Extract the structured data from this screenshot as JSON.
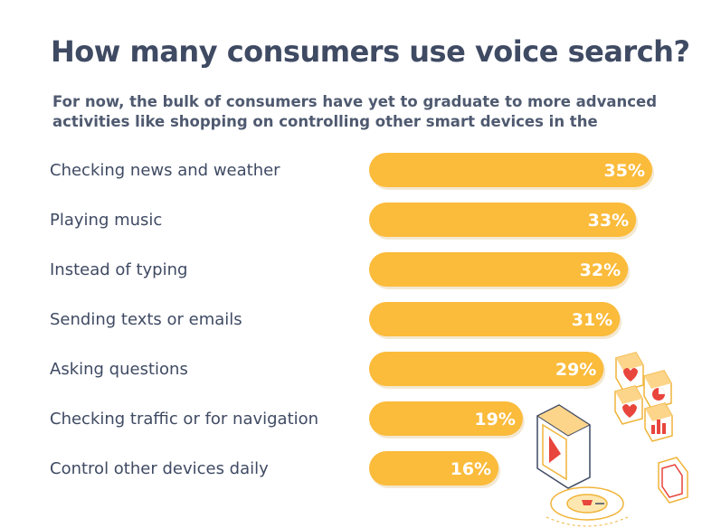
{
  "chart_data": {
    "type": "bar",
    "orientation": "horizontal",
    "title": "How many consumers use voice search?",
    "subtitle": "For now, the bulk of consumers have yet to graduate to more advanced activities like shopping on controlling other smart devices in the",
    "categories": [
      "Checking news and weather",
      "Playing music",
      "Instead of typing",
      "Sending texts or emails",
      "Asking questions",
      "Checking traffic or for navigation",
      "Control other devices daily"
    ],
    "values": [
      35,
      33,
      32,
      31,
      29,
      19,
      16
    ],
    "value_labels": [
      "35%",
      "33%",
      "32%",
      "31%",
      "29%",
      "19%",
      "16%"
    ],
    "unit": "%",
    "xlim": [
      0,
      35
    ],
    "grid": false,
    "legend": "none",
    "colors": {
      "bar": "#fbbb3b",
      "title": "#3f4a63",
      "text": "#3f4a63",
      "value_text": "#ffffff",
      "illustration_accent": "#e8453c"
    }
  },
  "decorations": {
    "icons": [
      "smartphone-play-icon",
      "heart-icon",
      "pie-chart-icon",
      "bar-chart-icon",
      "phone-icon",
      "microphone-icon"
    ]
  }
}
